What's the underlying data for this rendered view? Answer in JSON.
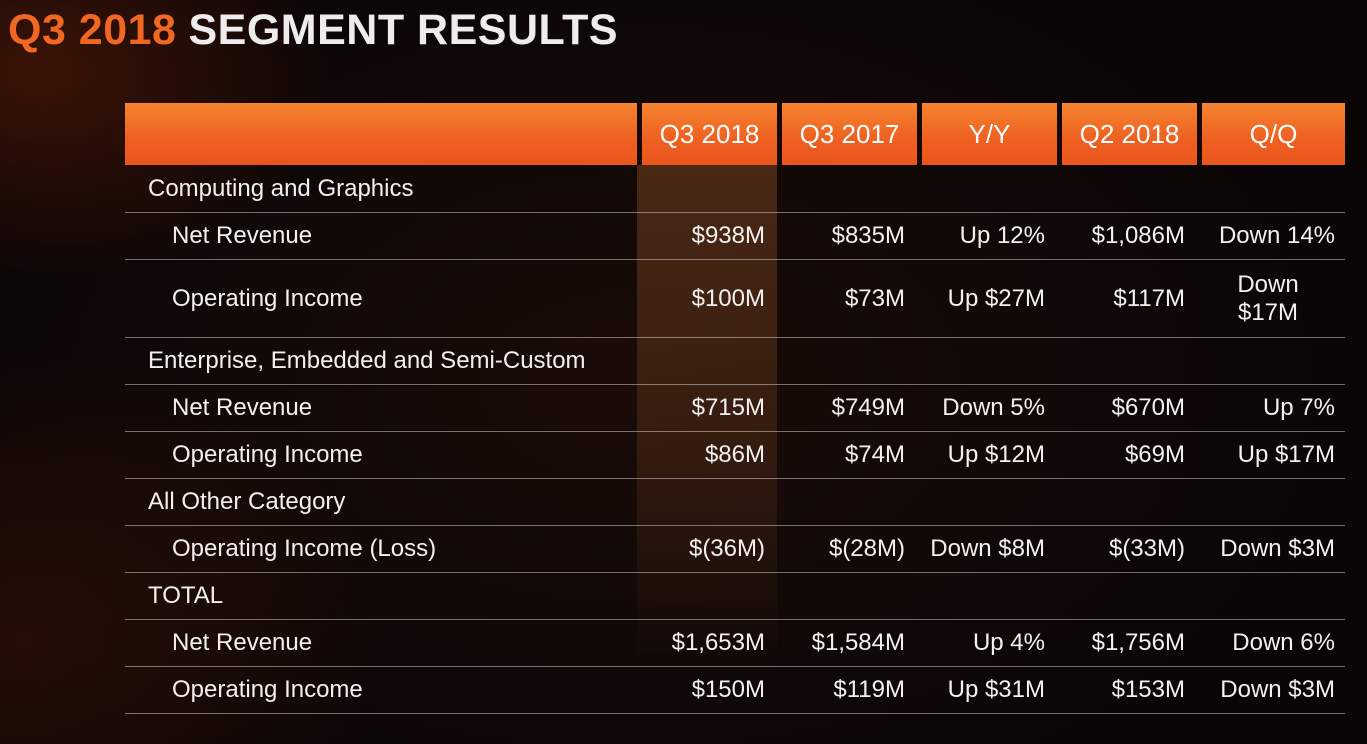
{
  "slide": {
    "title_highlight": "Q3 2018",
    "title_rest": "SEGMENT RESULTS"
  },
  "colors": {
    "accent_orange": "#f06722",
    "header_gradient_start": "#f5842f",
    "header_gradient_end": "#e9551d",
    "background": "#0a0505",
    "text": "#f3f0ee",
    "row_divider": "#d6d6d6"
  },
  "table": {
    "columns": [
      "Q3 2018",
      "Q3 2017",
      "Y/Y",
      "Q2 2018",
      "Q/Q"
    ],
    "sections": [
      {
        "name": "Computing and Graphics",
        "rows": [
          {
            "label": "Net Revenue",
            "values": [
              "$938M",
              "$835M",
              "Up 12%",
              "$1,086M",
              "Down 14%"
            ]
          },
          {
            "label": "Operating Income",
            "values": [
              "$100M",
              "$73M",
              "Up $27M",
              "$117M",
              "Down $17M"
            ]
          }
        ]
      },
      {
        "name": "Enterprise, Embedded and Semi-Custom",
        "rows": [
          {
            "label": "Net Revenue",
            "values": [
              "$715M",
              "$749M",
              "Down 5%",
              "$670M",
              "Up 7%"
            ]
          },
          {
            "label": "Operating Income",
            "values": [
              "$86M",
              "$74M",
              "Up $12M",
              "$69M",
              "Up $17M"
            ]
          }
        ]
      },
      {
        "name": "All Other Category",
        "rows": [
          {
            "label": "Operating Income (Loss)",
            "values": [
              "$(36M)",
              "$(28M)",
              "Down $8M",
              "$(33M)",
              "Down $3M"
            ]
          }
        ]
      },
      {
        "name": "TOTAL",
        "rows": [
          {
            "label": "Net Revenue",
            "values": [
              "$1,653M",
              "$1,584M",
              "Up 4%",
              "$1,756M",
              "Down 6%"
            ]
          },
          {
            "label": "Operating Income",
            "values": [
              "$150M",
              "$119M",
              "Up $31M",
              "$153M",
              "Down $3M"
            ]
          }
        ]
      }
    ]
  }
}
